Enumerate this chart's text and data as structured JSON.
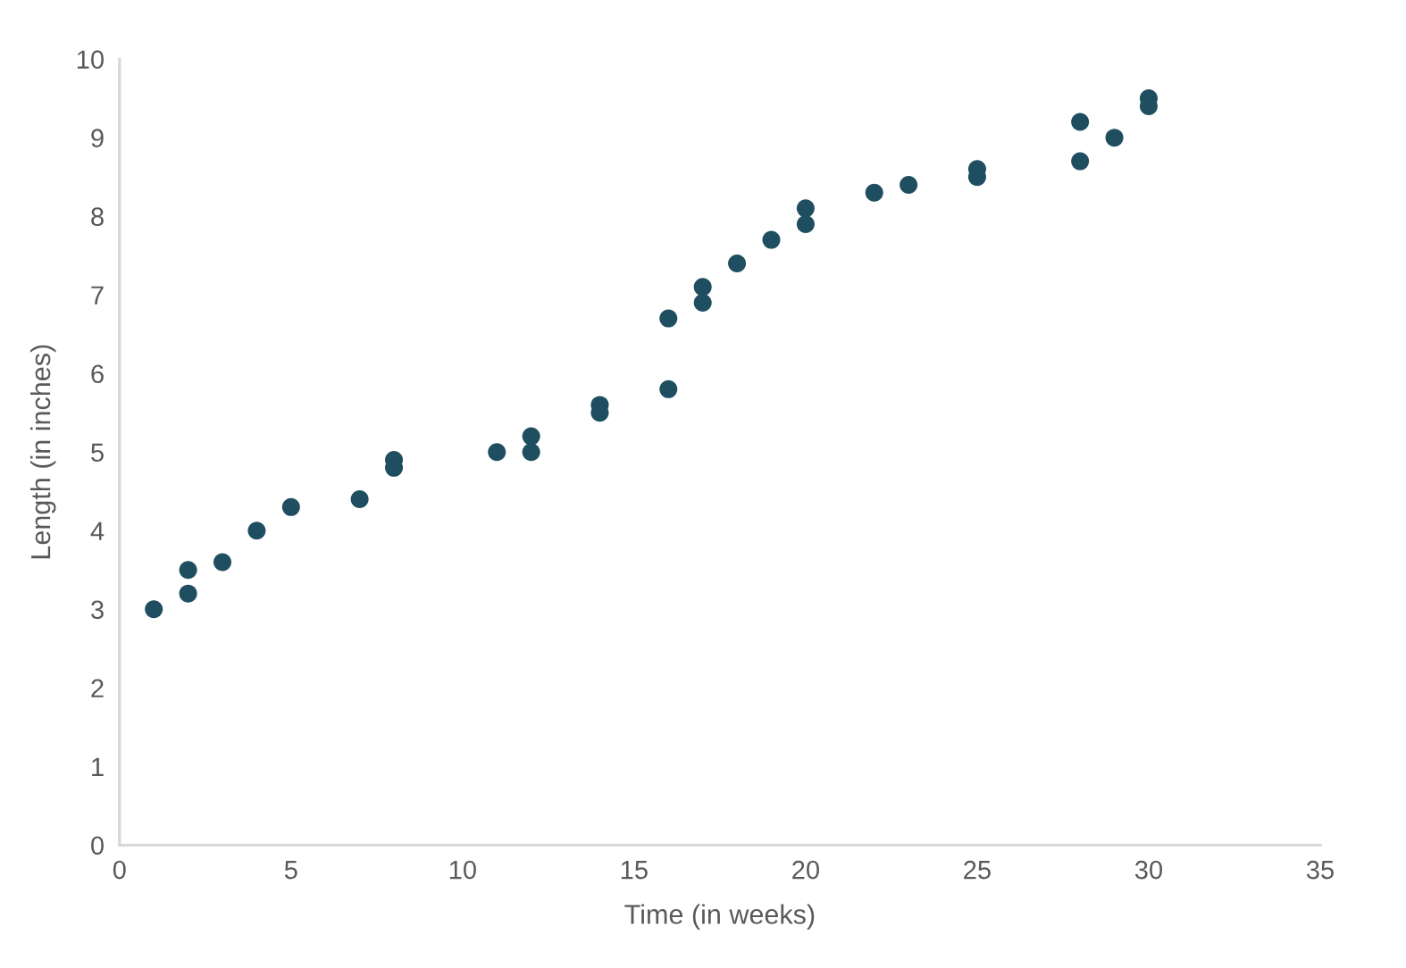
{
  "chart_data": {
    "type": "scatter",
    "xlabel": "Time (in weeks)",
    "ylabel": "Length (in inches)",
    "x": [
      1,
      2,
      2,
      3,
      4,
      5,
      7,
      8,
      8,
      11,
      12,
      12,
      14,
      14,
      16,
      16,
      17,
      17,
      18,
      19,
      20,
      20,
      22,
      23,
      25,
      25,
      28,
      28,
      29,
      30,
      30
    ],
    "values": [
      3.0,
      3.5,
      3.2,
      3.6,
      4.0,
      4.3,
      4.4,
      4.9,
      4.8,
      5.0,
      5.2,
      5.0,
      5.6,
      5.5,
      5.8,
      6.7,
      7.1,
      6.9,
      7.4,
      7.7,
      8.1,
      7.9,
      8.3,
      8.4,
      8.6,
      8.5,
      9.2,
      8.7,
      9.0,
      9.5,
      9.4
    ],
    "color": "#1f4e61",
    "marker": "circle",
    "xlim": [
      0,
      35
    ],
    "xticks": [
      0,
      5,
      10,
      15,
      20,
      25,
      30,
      35
    ],
    "ylim": [
      0,
      10
    ],
    "yticks": [
      0,
      1,
      2,
      3,
      4,
      5,
      6,
      7,
      8,
      9,
      10
    ]
  }
}
